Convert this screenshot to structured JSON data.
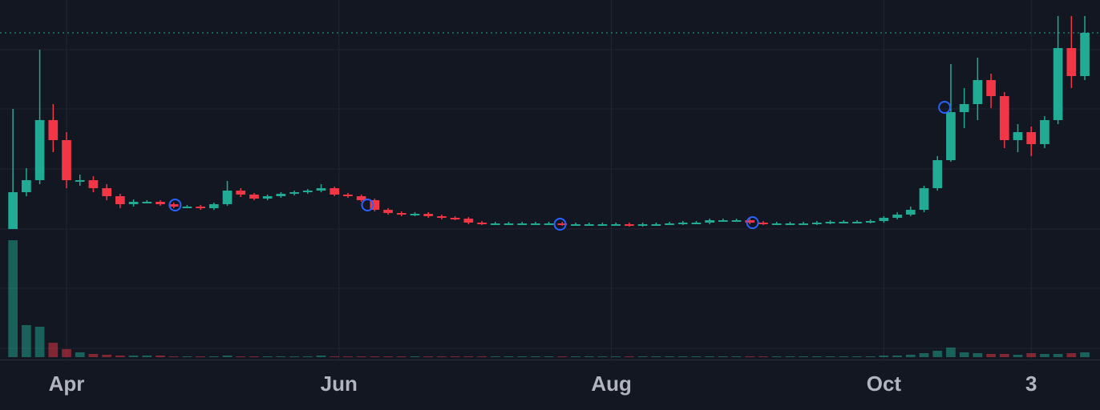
{
  "chart_data": {
    "type": "candlestick",
    "x": [
      0,
      3,
      6,
      9,
      12,
      15,
      18,
      21,
      24,
      27,
      30,
      33,
      36,
      39,
      42,
      45,
      48,
      51,
      54,
      57,
      60,
      63,
      66,
      69,
      72,
      75,
      78,
      81,
      84,
      87,
      90,
      93,
      96,
      99,
      102,
      105,
      108,
      111,
      114,
      117,
      120,
      123,
      126,
      129,
      132,
      135,
      138,
      141,
      144,
      147,
      150,
      153,
      156,
      159,
      162,
      165,
      168,
      171,
      174,
      177,
      180,
      183,
      186,
      189,
      192,
      195,
      198,
      201,
      204,
      207,
      210,
      213,
      216,
      219,
      222,
      225,
      228,
      231,
      234,
      237,
      240
    ],
    "open": [
      164,
      210,
      225,
      300,
      275,
      225,
      225,
      215,
      205,
      195,
      198,
      198,
      195,
      192,
      192,
      190,
      195,
      212,
      207,
      202,
      205,
      208,
      210,
      212,
      215,
      207,
      205,
      200,
      188,
      184,
      182,
      183,
      180,
      178,
      177,
      172,
      171,
      171,
      171,
      171,
      171,
      171,
      170,
      170,
      170,
      170,
      170,
      169,
      170,
      170,
      171,
      172,
      172,
      175,
      175,
      175,
      172,
      171,
      171,
      171,
      171,
      172,
      173,
      173,
      173,
      174,
      178,
      182,
      188,
      215,
      250,
      310,
      320,
      350,
      330,
      275,
      285,
      270,
      300,
      390,
      355
    ],
    "high": [
      314,
      240,
      388,
      320,
      285,
      232,
      230,
      220,
      208,
      201,
      200,
      200,
      197,
      194,
      194,
      197,
      224,
      215,
      209,
      207,
      210,
      212,
      214,
      220,
      217,
      209,
      207,
      202,
      190,
      186,
      185,
      185,
      182,
      180,
      179,
      174,
      173,
      173,
      173,
      173,
      173,
      173,
      172,
      172,
      172,
      172,
      172,
      172,
      172,
      173,
      174,
      174,
      177,
      177,
      177,
      177,
      174,
      173,
      173,
      173,
      174,
      175,
      175,
      175,
      176,
      180,
      185,
      192,
      218,
      255,
      370,
      340,
      378,
      358,
      335,
      295,
      292,
      305,
      430,
      430,
      430
    ],
    "low": [
      164,
      205,
      220,
      260,
      215,
      218,
      210,
      200,
      190,
      192,
      196,
      193,
      190,
      190,
      188,
      188,
      193,
      204,
      200,
      200,
      203,
      206,
      208,
      210,
      205,
      203,
      198,
      186,
      182,
      180,
      180,
      178,
      176,
      175,
      170,
      169,
      169,
      169,
      169,
      169,
      169,
      168,
      168,
      168,
      168,
      168,
      167,
      167,
      168,
      169,
      169,
      170,
      170,
      173,
      173,
      170,
      169,
      169,
      169,
      169,
      169,
      170,
      171,
      171,
      171,
      172,
      176,
      180,
      185,
      212,
      248,
      290,
      300,
      315,
      265,
      260,
      255,
      265,
      295,
      340,
      350
    ],
    "close": [
      210,
      225,
      300,
      275,
      225,
      225,
      215,
      205,
      195,
      198,
      198,
      195,
      192,
      192,
      190,
      195,
      212,
      207,
      202,
      205,
      208,
      210,
      212,
      215,
      207,
      205,
      200,
      188,
      184,
      182,
      183,
      180,
      178,
      177,
      172,
      171,
      171,
      171,
      171,
      171,
      171,
      170,
      170,
      170,
      170,
      170,
      169,
      170,
      170,
      171,
      172,
      172,
      175,
      175,
      175,
      172,
      171,
      171,
      171,
      171,
      172,
      173,
      173,
      173,
      174,
      178,
      182,
      188,
      215,
      250,
      310,
      320,
      350,
      330,
      275,
      285,
      270,
      300,
      390,
      355,
      409
    ],
    "volume": [
      146,
      40,
      38,
      18,
      10,
      6,
      4,
      3,
      2,
      2,
      2,
      2,
      1,
      1,
      1,
      1,
      2,
      1,
      1,
      1,
      1,
      1,
      1,
      2,
      1,
      1,
      1,
      1,
      1,
      1,
      1,
      1,
      1,
      1,
      1,
      1,
      1,
      1,
      1,
      1,
      1,
      1,
      1,
      1,
      1,
      1,
      1,
      1,
      1,
      1,
      1,
      1,
      1,
      1,
      1,
      1,
      1,
      1,
      1,
      1,
      1,
      1,
      1,
      1,
      1,
      2,
      2,
      3,
      5,
      8,
      12,
      6,
      5,
      4,
      4,
      3,
      5,
      4,
      4,
      5,
      6
    ],
    "up_color": "#22ab94",
    "down_color": "#f23645",
    "markers": {
      "x": [
        36.3,
        79.4,
        122.5,
        165.6,
        208.6
      ],
      "y": [
        194,
        194,
        170,
        172,
        316
      ],
      "color": "#2962ff"
    },
    "xlim": [
      -2.9,
      243.4
    ],
    "ylim": [
      0,
      450
    ],
    "volume_lim": [
      0,
      150
    ],
    "xticks": [
      {
        "value": 12,
        "label": "Apr"
      },
      {
        "value": 73,
        "label": "Jun"
      },
      {
        "value": 134,
        "label": "Aug"
      },
      {
        "value": 195,
        "label": "Oct"
      },
      {
        "value": 228,
        "label": "3"
      }
    ],
    "grid": true,
    "last_price_line": true
  }
}
